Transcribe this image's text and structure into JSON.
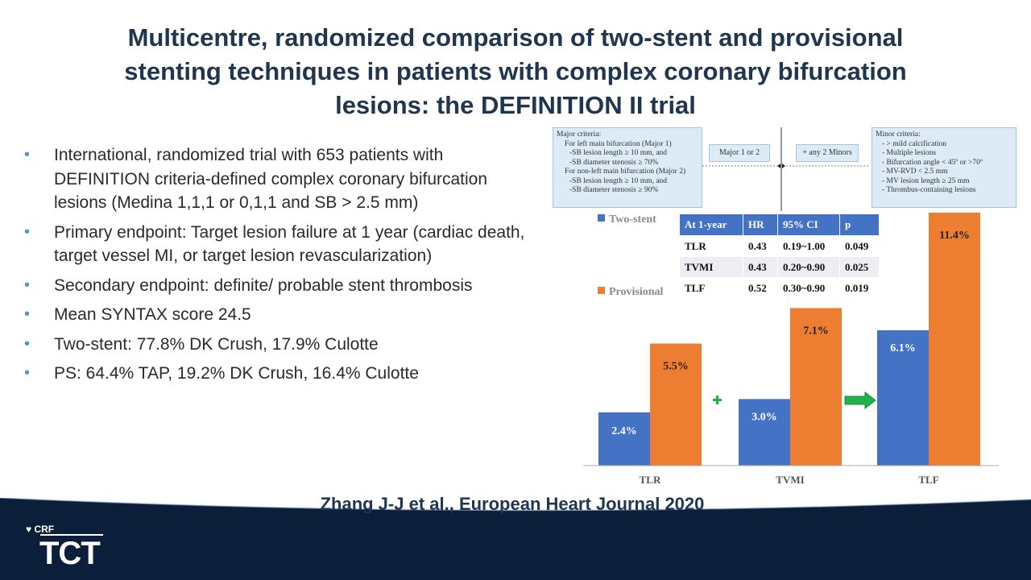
{
  "title": "Multicentre, randomized comparison of two-stent and provisional stenting techniques in patients with complex coronary bifurcation lesions: the DEFINITION II trial",
  "bullets": [
    "International, randomized trial with 653 patients with DEFINITION criteria-defined complex coronary bifurcation lesions (Medina 1,1,1 or 0,1,1 and SB > 2.5 mm)",
    "Primary endpoint: Target lesion failure at 1 year (cardiac death, target vessel MI, or target lesion revascularization)",
    "Secondary endpoint: definite/ probable stent thrombosis",
    "Mean SYNTAX score 24.5",
    "Two-stent: 77.8% DK Crush, 17.9% Culotte",
    "PS: 64.4% TAP, 19.2% DK Crush, 16.4% Culotte"
  ],
  "criteria": {
    "major_lines": [
      "Major criteria:",
      "  For left main bifurcation (Major 1)",
      "    -SB lesion length ≥ 10 mm, and",
      "    -SB  diameter stenosis ≥ 70%",
      "  For non-left main bifurcation (Major 2)",
      "    -SB lesion length ≥ 10 mm, and",
      "    -SB  diameter stenosis ≥ 90%"
    ],
    "major_or": "Major 1 or 2",
    "plus_minors": "+ any 2 Minors",
    "minor_lines": [
      "Minor criteria:",
      "  - > mild calcification",
      "  - Multiple lesions",
      "  - Bifurcation angle < 45º or >70º",
      "  - MV-RVD < 2.5 mm",
      "  - MV lesion length ≥ 25 mm",
      "  - Thrombus-containing lesions"
    ]
  },
  "legend": {
    "two_stent": "Two-stent",
    "provisional": "Provisional"
  },
  "table": {
    "headers": [
      "At 1-year",
      "HR",
      "95% CI",
      "p"
    ],
    "rows": [
      [
        "TLR",
        "0.43",
        "0.19~1.00",
        "0.049"
      ],
      [
        "TVMI",
        "0.43",
        "0.20~0.90",
        "0.025"
      ],
      [
        "TLF",
        "0.52",
        "0.30~0.90",
        "0.019"
      ]
    ]
  },
  "chart_data": {
    "type": "bar",
    "categories": [
      "TLR",
      "TVMI",
      "TLF"
    ],
    "series": [
      {
        "name": "Two-stent",
        "values": [
          2.4,
          3.0,
          6.1
        ],
        "labels": [
          "2.4%",
          "3.0%",
          "6.1%"
        ],
        "color": "#4472c4"
      },
      {
        "name": "Provisional",
        "values": [
          5.5,
          7.1,
          11.4
        ],
        "labels": [
          "5.5%",
          "7.1%",
          "11.4%"
        ],
        "color": "#ed7d31"
      }
    ],
    "ylim": [
      0,
      11.4
    ],
    "grid": false,
    "legend_position": "top-left",
    "annotations": [
      "plus-sign",
      "right-arrow"
    ]
  },
  "citation": "Zhang J-J et al., European Heart Journal 2020",
  "footer": {
    "crf": "CRF",
    "tct": "TCT",
    "background": "#0b1e3a"
  },
  "colors": {
    "title": "#1f3550",
    "bullet": "#5b8fd1",
    "accent_green": "#21b24b"
  }
}
